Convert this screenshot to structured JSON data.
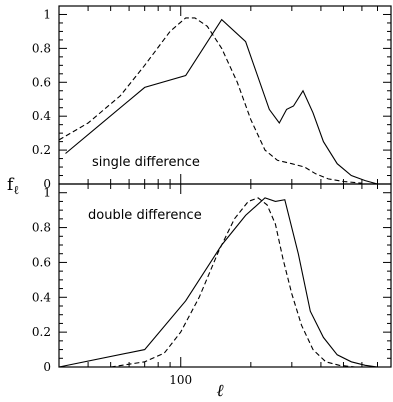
{
  "chart_data": [
    {
      "type": "line",
      "panel_label": "single difference",
      "ylabel": "f",
      "ylabel_subscript": "ℓ",
      "xscale": "log",
      "xlim": [
        30,
        800
      ],
      "ylim": [
        0,
        1.05
      ],
      "x_ticklabels": [],
      "y_ticks": [
        0,
        0.2,
        0.4,
        0.6,
        0.8,
        1
      ],
      "y_ticklabels": [
        "0",
        "0.2",
        "0.4",
        "0.6",
        "0.8",
        "1"
      ],
      "series": [
        {
          "style": "solid",
          "points": [
            [
              32,
              0.18
            ],
            [
              70,
              0.57
            ],
            [
              105,
              0.64
            ],
            [
              150,
              0.97
            ],
            [
              190,
              0.84
            ],
            [
              240,
              0.44
            ],
            [
              265,
              0.36
            ],
            [
              285,
              0.44
            ],
            [
              305,
              0.46
            ],
            [
              335,
              0.55
            ],
            [
              370,
              0.42
            ],
            [
              410,
              0.25
            ],
            [
              470,
              0.12
            ],
            [
              540,
              0.05
            ],
            [
              620,
              0.02
            ],
            [
              700,
              0.0
            ]
          ]
        },
        {
          "style": "dashed",
          "points": [
            [
              30,
              0.26
            ],
            [
              40,
              0.36
            ],
            [
              55,
              0.52
            ],
            [
              70,
              0.7
            ],
            [
              90,
              0.9
            ],
            [
              105,
              0.98
            ],
            [
              115,
              0.98
            ],
            [
              130,
              0.93
            ],
            [
              150,
              0.8
            ],
            [
              175,
              0.6
            ],
            [
              200,
              0.38
            ],
            [
              230,
              0.2
            ],
            [
              260,
              0.14
            ],
            [
              300,
              0.12
            ],
            [
              340,
              0.1
            ],
            [
              380,
              0.06
            ],
            [
              430,
              0.03
            ],
            [
              500,
              0.015
            ],
            [
              600,
              0.005
            ]
          ]
        }
      ]
    },
    {
      "type": "line",
      "panel_label": "double difference",
      "xlabel": "ℓ",
      "xscale": "log",
      "xlim": [
        30,
        800
      ],
      "ylim": [
        0,
        1.05
      ],
      "x_ticks": [
        100
      ],
      "x_ticklabels": [
        "100"
      ],
      "y_ticks": [
        0,
        0.2,
        0.4,
        0.6,
        0.8,
        1
      ],
      "y_ticklabels": [
        "0",
        "0.2",
        "0.4",
        "0.6",
        "0.8",
        "1"
      ],
      "series": [
        {
          "style": "solid",
          "points": [
            [
              30,
              0.0
            ],
            [
              70,
              0.1
            ],
            [
              105,
              0.38
            ],
            [
              150,
              0.7
            ],
            [
              190,
              0.87
            ],
            [
              230,
              0.97
            ],
            [
              255,
              0.95
            ],
            [
              280,
              0.96
            ],
            [
              320,
              0.65
            ],
            [
              360,
              0.32
            ],
            [
              410,
              0.17
            ],
            [
              470,
              0.07
            ],
            [
              540,
              0.03
            ],
            [
              620,
              0.01
            ],
            [
              700,
              0.0
            ]
          ]
        },
        {
          "style": "dashed",
          "points": [
            [
              50,
              0.0
            ],
            [
              70,
              0.03
            ],
            [
              85,
              0.08
            ],
            [
              100,
              0.2
            ],
            [
              120,
              0.4
            ],
            [
              145,
              0.66
            ],
            [
              170,
              0.85
            ],
            [
              195,
              0.95
            ],
            [
              215,
              0.97
            ],
            [
              235,
              0.93
            ],
            [
              255,
              0.82
            ],
            [
              275,
              0.62
            ],
            [
              300,
              0.42
            ],
            [
              330,
              0.24
            ],
            [
              370,
              0.1
            ],
            [
              420,
              0.03
            ],
            [
              480,
              0.01
            ],
            [
              560,
              0.0
            ]
          ]
        }
      ]
    }
  ]
}
